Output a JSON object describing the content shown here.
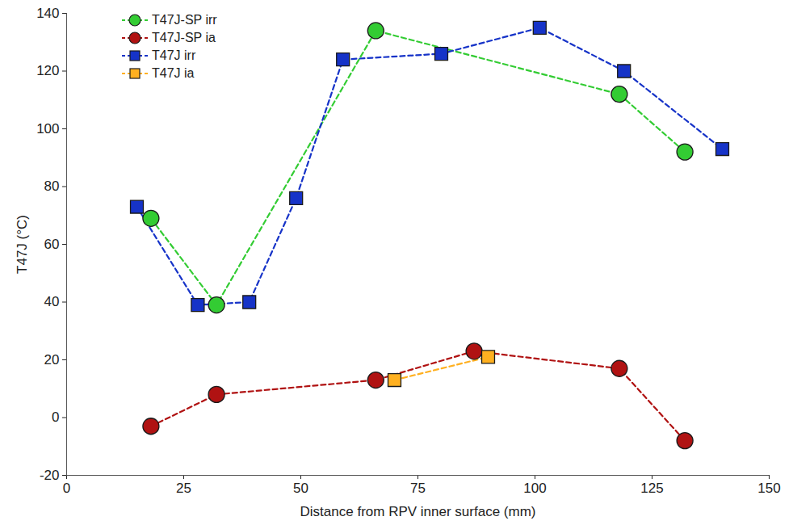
{
  "chart_data": {
    "type": "line",
    "x_label": "Distance from RPV inner surface (mm)",
    "y_label": "T47J (°C)",
    "xlim": [
      0,
      150
    ],
    "xticks": [
      0,
      25,
      50,
      75,
      100,
      125,
      150
    ],
    "ylim": [
      -20,
      140
    ],
    "yticks": [
      -20,
      0,
      20,
      40,
      60,
      80,
      100,
      120,
      140
    ],
    "grid": false,
    "legend": "upper left",
    "series": [
      {
        "name": "T47J-SP irr",
        "color": "#33cc33",
        "marker": "circle",
        "line_style": "dashed",
        "x": [
          18,
          32,
          66,
          118,
          132
        ],
        "values": [
          69,
          39,
          134,
          112,
          92
        ]
      },
      {
        "name": "T47J-SP ia",
        "color": "#b01212",
        "marker": "circle",
        "line_style": "dashed",
        "x": [
          18,
          32,
          66,
          87,
          118,
          132
        ],
        "values": [
          -3,
          8,
          13,
          23,
          17,
          -8
        ]
      },
      {
        "name": "T47J irr",
        "color": "#1633c8",
        "marker": "square",
        "line_style": "dashed",
        "x": [
          15,
          28,
          39,
          49,
          59,
          80,
          101,
          119,
          140
        ],
        "values": [
          73,
          39,
          40,
          76,
          124,
          126,
          135,
          120,
          93
        ]
      },
      {
        "name": "T47J ia",
        "color": "#ffb020",
        "marker": "square",
        "line_style": "dashed",
        "x": [
          70,
          90
        ],
        "values": [
          13,
          21
        ]
      }
    ]
  }
}
